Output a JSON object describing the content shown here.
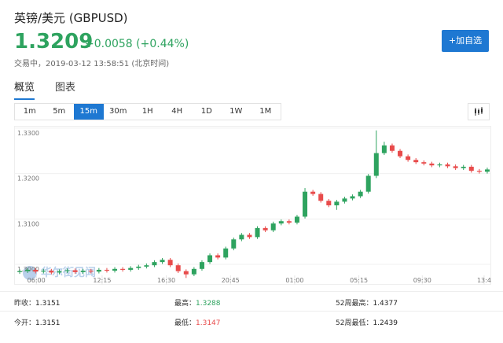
{
  "header": {
    "title": "英镑/美元 (GBPUSD)",
    "price": "1.3209",
    "change": "+0.0058 (+0.44%)",
    "status": "交易中，2019-03-12 13:58:51 (北京时间)",
    "button": "+加自选"
  },
  "tabs": {
    "items": [
      "概览",
      "图表"
    ],
    "selected": 0
  },
  "intervals": {
    "items": [
      "1m",
      "5m",
      "15m",
      "30m",
      "1H",
      "4H",
      "1D",
      "1W",
      "1M"
    ],
    "selected": 2
  },
  "chart_data": {
    "type": "candlestick",
    "watermark": "华尔街见闻",
    "up_color": "#2ea35f",
    "down_color": "#e84b4b",
    "grid": true,
    "xlim": [
      0,
      60
    ],
    "xticks": [
      {
        "value": 2.6,
        "label": "06:00"
      },
      {
        "value": 10.9,
        "label": "12:15"
      },
      {
        "value": 19,
        "label": "16:30"
      },
      {
        "value": 27.1,
        "label": "20:45"
      },
      {
        "value": 35.2,
        "label": "01:00"
      },
      {
        "value": 43.3,
        "label": "05:15"
      },
      {
        "value": 51.3,
        "label": "09:30"
      },
      {
        "value": 59.1,
        "label": "13:4"
      }
    ],
    "ylim": [
      1.2955,
      1.3305
    ],
    "yticks": [
      {
        "value": 1.33,
        "label": "1.3300"
      },
      {
        "value": 1.32,
        "label": "1.3200"
      },
      {
        "value": 1.31,
        "label": "1.3100"
      },
      {
        "value": 1.3,
        "label": "1.3000"
      }
    ],
    "open": [
      1.2983,
      1.2985,
      1.2988,
      1.2984,
      1.2986,
      1.2982,
      1.2985,
      1.2987,
      1.2983,
      1.2986,
      1.2984,
      1.2988,
      1.2986,
      1.299,
      1.2988,
      1.2992,
      1.2995,
      1.2998,
      1.3005,
      1.301,
      1.2998,
      1.2985,
      1.2978,
      1.299,
      1.3005,
      1.302,
      1.3015,
      1.3035,
      1.3055,
      1.3065,
      1.306,
      1.308,
      1.3075,
      1.309,
      1.3095,
      1.3092,
      1.3105,
      1.316,
      1.3155,
      1.314,
      1.313,
      1.3138,
      1.3145,
      1.315,
      1.316,
      1.3195,
      1.3245,
      1.3262,
      1.325,
      1.3238,
      1.323,
      1.3225,
      1.3222,
      1.3218,
      1.322,
      1.3216,
      1.3212,
      1.3215,
      1.3206,
      1.3204
    ],
    "high": [
      1.2989,
      1.2992,
      1.2992,
      1.299,
      1.299,
      1.2989,
      1.2991,
      1.2991,
      1.299,
      1.299,
      1.2992,
      1.2992,
      1.2994,
      1.2994,
      1.2996,
      1.2999,
      1.3002,
      1.3009,
      1.3014,
      1.3014,
      1.3002,
      1.2989,
      1.2994,
      1.3009,
      1.3024,
      1.3024,
      1.3039,
      1.3059,
      1.3069,
      1.3069,
      1.3084,
      1.3084,
      1.3094,
      1.3099,
      1.3099,
      1.3109,
      1.3168,
      1.3164,
      1.3159,
      1.3144,
      1.3142,
      1.3149,
      1.3154,
      1.3164,
      1.3199,
      1.3295,
      1.327,
      1.3266,
      1.3254,
      1.3242,
      1.3234,
      1.3229,
      1.3226,
      1.3224,
      1.3224,
      1.322,
      1.3219,
      1.3219,
      1.321,
      1.3213
    ],
    "low": [
      1.2979,
      1.2981,
      1.298,
      1.298,
      1.2978,
      1.2978,
      1.2981,
      1.2979,
      1.2979,
      1.298,
      1.298,
      1.2982,
      1.2982,
      1.2984,
      1.2984,
      1.2988,
      1.2991,
      1.2994,
      1.3001,
      1.2994,
      1.2981,
      1.297,
      1.2974,
      1.2986,
      1.3001,
      1.3011,
      1.3011,
      1.3031,
      1.3051,
      1.3056,
      1.3056,
      1.3071,
      1.3071,
      1.3086,
      1.3088,
      1.3088,
      1.3101,
      1.3151,
      1.3136,
      1.3126,
      1.312,
      1.3134,
      1.3141,
      1.3146,
      1.3156,
      1.319,
      1.3241,
      1.3246,
      1.3234,
      1.3226,
      1.3221,
      1.3218,
      1.3214,
      1.3214,
      1.3212,
      1.3208,
      1.3208,
      1.3202,
      1.32,
      1.32
    ],
    "close": [
      1.2985,
      1.2988,
      1.2984,
      1.2986,
      1.2982,
      1.2985,
      1.2987,
      1.2983,
      1.2986,
      1.2984,
      1.2988,
      1.2986,
      1.299,
      1.2988,
      1.2992,
      1.2995,
      1.2998,
      1.3005,
      1.301,
      1.2998,
      1.2985,
      1.2978,
      1.299,
      1.3005,
      1.302,
      1.3015,
      1.3035,
      1.3055,
      1.3065,
      1.306,
      1.308,
      1.3075,
      1.309,
      1.3095,
      1.3092,
      1.3105,
      1.316,
      1.3155,
      1.314,
      1.313,
      1.3138,
      1.3145,
      1.315,
      1.316,
      1.3195,
      1.3245,
      1.3262,
      1.325,
      1.3238,
      1.323,
      1.3225,
      1.3222,
      1.3218,
      1.322,
      1.3216,
      1.3212,
      1.3215,
      1.3206,
      1.3204,
      1.3209
    ]
  },
  "stats": {
    "rows": [
      [
        {
          "label": "昨收：",
          "value": "1.3151"
        },
        {
          "label": "最高：",
          "value": "1.3288"
        },
        {
          "label": "52周最高：",
          "value": "1.4377"
        }
      ],
      [
        {
          "label": "今开：",
          "value": "1.3151"
        },
        {
          "label": "最低：",
          "value": "1.3147"
        },
        {
          "label": "52周最低：",
          "value": "1.2439"
        }
      ]
    ]
  }
}
